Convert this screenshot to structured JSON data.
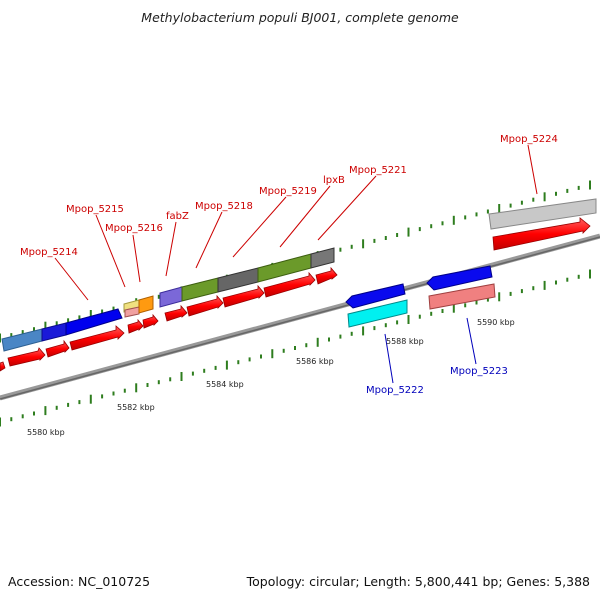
{
  "title": "Methylobacterium populi BJ001, complete genome",
  "accession": "Accession: NC_010725",
  "topology": "Topology: circular; Length: 5,800,441 bp; Genes: 5,388",
  "ticks": [
    {
      "label": "5580 kbp"
    },
    {
      "label": "5582 kbp"
    },
    {
      "label": "5584 kbp"
    },
    {
      "label": "5586 kbp"
    },
    {
      "label": "5588 kbp"
    },
    {
      "label": "5590 kbp"
    }
  ],
  "gene_labels": [
    {
      "name": "Mpop_5214",
      "strand": "forward"
    },
    {
      "name": "Mpop_5215",
      "strand": "forward"
    },
    {
      "name": "Mpop_5216",
      "strand": "forward"
    },
    {
      "name": "fabZ",
      "strand": "forward"
    },
    {
      "name": "Mpop_5218",
      "strand": "forward"
    },
    {
      "name": "Mpop_5219",
      "strand": "forward"
    },
    {
      "name": "lpxB",
      "strand": "forward"
    },
    {
      "name": "Mpop_5221",
      "strand": "forward"
    },
    {
      "name": "Mpop_5224",
      "strand": "forward"
    },
    {
      "name": "Mpop_5222",
      "strand": "reverse"
    },
    {
      "name": "Mpop_5223",
      "strand": "reverse"
    }
  ],
  "colors": {
    "cds": "#ff0000",
    "backbone": "#888888",
    "tick": "#2e7d1e",
    "label_forward": "#cc0000",
    "label_reverse": "#0000bb"
  }
}
